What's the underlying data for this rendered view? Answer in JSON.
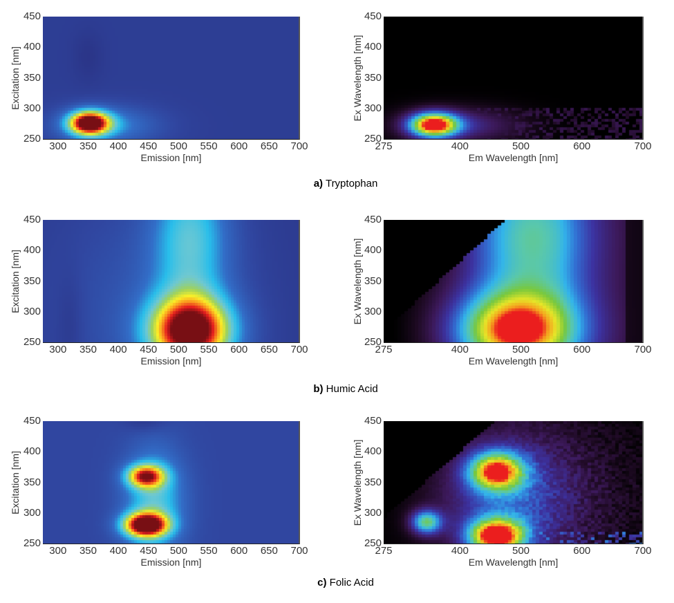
{
  "chart_data": [
    {
      "type": "heatmap",
      "panel": "a",
      "side": "left",
      "sample": "Tryptophan",
      "colormap": "jet",
      "xlabel": "Emission [nm]",
      "ylabel": "Excitation [nm]",
      "xlim": [
        275,
        700
      ],
      "ylim": [
        250,
        450
      ],
      "xticks": [
        "300",
        "350",
        "400",
        "450",
        "500",
        "550",
        "600",
        "650",
        "700"
      ],
      "yticks": [
        "450",
        "400",
        "350",
        "300",
        "250"
      ],
      "peaks": [
        {
          "em": 352,
          "ex": 276,
          "intensity": 1.0
        }
      ],
      "notes": "Single peak at Em~352nm / Ex~276nm; dark-blue background; faint dark blob near Em 350 Ex 380"
    },
    {
      "type": "heatmap",
      "panel": "a",
      "side": "right",
      "sample": "Tryptophan",
      "colormap": "plasma-like (black-purple-blue-cyan-green-yellow-red)",
      "xlabel": "Em Wavelength [nm]",
      "ylabel": "Ex Wavelength [nm]",
      "xlim": [
        275,
        700
      ],
      "ylim": [
        250,
        450
      ],
      "xticks": [
        "275",
        "400",
        "500",
        "600",
        "700"
      ],
      "yticks": [
        "450",
        "400",
        "350",
        "300",
        "250"
      ],
      "peaks": [
        {
          "em": 355,
          "ex": 273,
          "intensity": 1.0
        }
      ],
      "notes": "Peak at Em~355nm / Ex~273nm; black background with noise at low Ex"
    },
    {
      "type": "heatmap",
      "panel": "b",
      "side": "left",
      "sample": "Humic Acid",
      "colormap": "jet",
      "xlabel": "Emission [nm]",
      "ylabel": "Excitation [nm]",
      "xlim": [
        275,
        700
      ],
      "ylim": [
        250,
        450
      ],
      "xticks": [
        "300",
        "350",
        "400",
        "450",
        "500",
        "550",
        "600",
        "650",
        "700"
      ],
      "yticks": [
        "450",
        "400",
        "350",
        "300",
        "250"
      ],
      "peaks": [
        {
          "em": 520,
          "ex": 265,
          "intensity": 1.0
        }
      ],
      "notes": "Broad peak Em 470-580nm, Ex 250-320nm; cyan band extending up to Ex 450 around Em 500-560"
    },
    {
      "type": "heatmap",
      "panel": "b",
      "side": "right",
      "sample": "Humic Acid",
      "colormap": "plasma-like",
      "xlabel": "Em Wavelength [nm]",
      "ylabel": "Ex Wavelength [nm]",
      "xlim": [
        275,
        700
      ],
      "ylim": [
        250,
        450
      ],
      "xticks": [
        "275",
        "400",
        "500",
        "600",
        "700"
      ],
      "yticks": [
        "450",
        "400",
        "350",
        "300",
        "250"
      ],
      "peaks": [
        {
          "em": 490,
          "ex": 270,
          "intensity": 1.0
        }
      ],
      "notes": "Broad yellow peak Em 420-580nm, Ex 250-320nm; black triangular region upper-left (Em < Ex Rayleigh cut)"
    },
    {
      "type": "heatmap",
      "panel": "c",
      "side": "left",
      "sample": "Folic Acid",
      "colormap": "jet",
      "xlabel": "Emission [nm]",
      "ylabel": "Excitation [nm]",
      "xlim": [
        275,
        700
      ],
      "ylim": [
        250,
        450
      ],
      "xticks": [
        "300",
        "350",
        "400",
        "450",
        "500",
        "550",
        "600",
        "650",
        "700"
      ],
      "yticks": [
        "450",
        "400",
        "350",
        "300",
        "250"
      ],
      "peaks": [
        {
          "em": 445,
          "ex": 280,
          "intensity": 1.0
        },
        {
          "em": 445,
          "ex": 360,
          "intensity": 0.75
        }
      ],
      "notes": "Two peaks at Em~445nm: Ex~280 (strong) and Ex~360 (moderate)"
    },
    {
      "type": "heatmap",
      "panel": "c",
      "side": "right",
      "sample": "Folic Acid",
      "colormap": "plasma-like",
      "xlabel": "Em Wavelength [nm]",
      "ylabel": "Ex Wavelength [nm]",
      "xlim": [
        275,
        700
      ],
      "ylim": [
        250,
        450
      ],
      "xticks": [
        "275",
        "400",
        "500",
        "600",
        "700"
      ],
      "yticks": [
        "450",
        "400",
        "350",
        "300",
        "250"
      ],
      "peaks": [
        {
          "em": 460,
          "ex": 262,
          "intensity": 1.0
        },
        {
          "em": 460,
          "ex": 368,
          "intensity": 0.85
        },
        {
          "em": 345,
          "ex": 285,
          "intensity": 0.6
        }
      ],
      "notes": "Two main peaks at Em~460 (Ex~262, Ex~368) plus a small green peak near Em~345 Ex~285"
    }
  ],
  "captions": {
    "a": {
      "letter": "a)",
      "text": " Tryptophan"
    },
    "b": {
      "letter": "b)",
      "text": " Humic Acid"
    },
    "c": {
      "letter": "c)",
      "text": " Folic Acid"
    }
  },
  "axes": {
    "left_xlabel": "Emission [nm]",
    "left_ylabel": "Excitation [nm]",
    "right_xlabel": "Em Wavelength [nm]",
    "right_ylabel": "Ex Wavelength [nm]",
    "left_xticks": [
      "300",
      "350",
      "400",
      "450",
      "500",
      "550",
      "600",
      "650",
      "700"
    ],
    "right_xticks": [
      "275",
      "400",
      "500",
      "600",
      "700"
    ],
    "yticks": [
      "450",
      "400",
      "350",
      "300",
      "250"
    ]
  }
}
